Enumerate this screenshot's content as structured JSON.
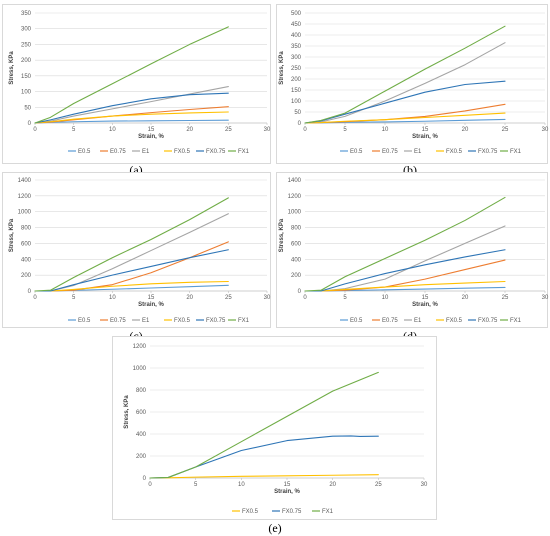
{
  "colors": {
    "E0.5": "#5b9bd5",
    "E0.75": "#ed7d31",
    "E1": "#a5a5a5",
    "FX0.5": "#ffc000",
    "FX0.75": "#2e75b6",
    "FX1": "#70ad47",
    "grid": "#d9d9d9",
    "axis": "#bfbfbf"
  },
  "chart_data": [
    {
      "type": "line",
      "caption": "(a)",
      "xlabel": "Strain, %",
      "ylabel": "Stress, KPa",
      "xlim": [
        0,
        30
      ],
      "ylim": [
        0,
        350
      ],
      "xticks": [
        0,
        5,
        10,
        15,
        20,
        25,
        30
      ],
      "yticks": [
        0,
        50,
        100,
        150,
        200,
        250,
        300,
        350
      ],
      "grid": "horizontal",
      "legend": "bottom",
      "series": [
        {
          "name": "E0.5",
          "x": [
            0,
            2,
            5,
            10,
            15,
            20,
            25
          ],
          "y": [
            0,
            2,
            4,
            6,
            7,
            8,
            9
          ]
        },
        {
          "name": "E0.75",
          "x": [
            0,
            2,
            5,
            10,
            15,
            20,
            25
          ],
          "y": [
            0,
            3,
            10,
            22,
            33,
            43,
            52
          ]
        },
        {
          "name": "E1",
          "x": [
            0,
            2,
            5,
            10,
            15,
            20,
            25
          ],
          "y": [
            0,
            6,
            22,
            45,
            68,
            92,
            116
          ]
        },
        {
          "name": "FX0.5",
          "x": [
            0,
            2,
            5,
            10,
            15,
            20,
            25
          ],
          "y": [
            0,
            4,
            12,
            22,
            28,
            32,
            35
          ]
        },
        {
          "name": "FX0.75",
          "x": [
            0,
            2,
            5,
            10,
            15,
            20,
            25
          ],
          "y": [
            0,
            10,
            28,
            55,
            77,
            90,
            95
          ]
        },
        {
          "name": "FX1",
          "x": [
            0,
            2,
            5,
            10,
            15,
            20,
            25
          ],
          "y": [
            0,
            18,
            62,
            125,
            188,
            250,
            306
          ]
        }
      ]
    },
    {
      "type": "line",
      "caption": "(b)",
      "xlabel": "Strain, %",
      "ylabel": "Stress, KPa",
      "xlim": [
        0,
        30
      ],
      "ylim": [
        0,
        500
      ],
      "xticks": [
        0,
        5,
        10,
        15,
        20,
        25,
        30
      ],
      "yticks": [
        0,
        50,
        100,
        150,
        200,
        250,
        300,
        350,
        400,
        450,
        500
      ],
      "grid": "horizontal",
      "legend": "bottom",
      "series": [
        {
          "name": "E0.5",
          "x": [
            0,
            2,
            5,
            10,
            15,
            20,
            25
          ],
          "y": [
            0,
            1,
            3,
            5,
            8,
            12,
            16
          ]
        },
        {
          "name": "E0.75",
          "x": [
            0,
            2,
            5,
            10,
            15,
            20,
            25
          ],
          "y": [
            0,
            2,
            6,
            15,
            30,
            55,
            85
          ]
        },
        {
          "name": "E1",
          "x": [
            0,
            2,
            5,
            10,
            15,
            20,
            25
          ],
          "y": [
            0,
            5,
            30,
            100,
            180,
            265,
            365
          ]
        },
        {
          "name": "FX0.5",
          "x": [
            0,
            2,
            5,
            10,
            15,
            20,
            25
          ],
          "y": [
            0,
            2,
            8,
            15,
            25,
            35,
            45
          ]
        },
        {
          "name": "FX0.75",
          "x": [
            0,
            2,
            5,
            10,
            15,
            20,
            25
          ],
          "y": [
            0,
            10,
            40,
            90,
            140,
            175,
            190
          ]
        },
        {
          "name": "FX1",
          "x": [
            0,
            2,
            5,
            10,
            15,
            20,
            25
          ],
          "y": [
            0,
            12,
            45,
            145,
            245,
            340,
            440
          ]
        }
      ]
    },
    {
      "type": "line",
      "caption": "(c)",
      "xlabel": "Strain, %",
      "ylabel": "Stress, KPa",
      "xlim": [
        0,
        30
      ],
      "ylim": [
        0,
        1400
      ],
      "xticks": [
        0,
        5,
        10,
        15,
        20,
        25,
        30
      ],
      "yticks": [
        0,
        200,
        400,
        600,
        800,
        1000,
        1200,
        1400
      ],
      "grid": "horizontal",
      "legend": "bottom",
      "series": [
        {
          "name": "E0.5",
          "x": [
            0,
            2,
            5,
            10,
            15,
            20,
            25
          ],
          "y": [
            0,
            0,
            8,
            22,
            38,
            55,
            72
          ]
        },
        {
          "name": "E0.75",
          "x": [
            0,
            2,
            5,
            10,
            15,
            20,
            25
          ],
          "y": [
            0,
            0,
            10,
            80,
            230,
            420,
            620
          ]
        },
        {
          "name": "E1",
          "x": [
            0,
            2,
            5,
            10,
            15,
            20,
            25
          ],
          "y": [
            0,
            0,
            70,
            280,
            510,
            740,
            975
          ]
        },
        {
          "name": "FX0.5",
          "x": [
            0,
            2,
            5,
            10,
            15,
            20,
            25
          ],
          "y": [
            0,
            0,
            20,
            60,
            90,
            110,
            120
          ]
        },
        {
          "name": "FX0.75",
          "x": [
            0,
            2,
            5,
            10,
            15,
            20,
            25
          ],
          "y": [
            0,
            0,
            80,
            200,
            310,
            420,
            520
          ]
        },
        {
          "name": "FX1",
          "x": [
            0,
            2,
            5,
            10,
            15,
            20,
            25
          ],
          "y": [
            0,
            10,
            170,
            420,
            650,
            900,
            1175
          ]
        }
      ]
    },
    {
      "type": "line",
      "caption": "(d)",
      "xlabel": "Strain, %",
      "ylabel": "Stress, KPa",
      "xlim": [
        0,
        30
      ],
      "ylim": [
        0,
        1400
      ],
      "xticks": [
        0,
        5,
        10,
        15,
        20,
        25,
        30
      ],
      "yticks": [
        0,
        200,
        400,
        600,
        800,
        1000,
        1200,
        1400
      ],
      "grid": "horizontal",
      "legend": "bottom",
      "series": [
        {
          "name": "E0.5",
          "x": [
            0,
            2,
            5,
            10,
            15,
            20,
            25
          ],
          "y": [
            0,
            0,
            5,
            15,
            25,
            35,
            45
          ]
        },
        {
          "name": "E0.75",
          "x": [
            0,
            2,
            5,
            10,
            15,
            20,
            25
          ],
          "y": [
            0,
            0,
            10,
            50,
            150,
            270,
            390
          ]
        },
        {
          "name": "E1",
          "x": [
            0,
            2,
            5,
            10,
            15,
            20,
            25
          ],
          "y": [
            0,
            0,
            30,
            150,
            380,
            600,
            820
          ]
        },
        {
          "name": "FX0.5",
          "x": [
            0,
            2,
            5,
            10,
            15,
            20,
            25
          ],
          "y": [
            0,
            0,
            20,
            50,
            80,
            100,
            120
          ]
        },
        {
          "name": "FX0.75",
          "x": [
            0,
            2,
            5,
            10,
            15,
            20,
            25
          ],
          "y": [
            0,
            0,
            90,
            220,
            330,
            430,
            520
          ]
        },
        {
          "name": "FX1",
          "x": [
            0,
            2,
            5,
            10,
            15,
            20,
            25
          ],
          "y": [
            0,
            10,
            180,
            410,
            640,
            890,
            1180
          ]
        }
      ]
    },
    {
      "type": "line",
      "caption": "(e)",
      "xlabel": "Strain, %",
      "ylabel": "Stress, KPa",
      "xlim": [
        0,
        30
      ],
      "ylim": [
        0,
        1200
      ],
      "xticks": [
        0,
        5,
        10,
        15,
        20,
        25,
        30
      ],
      "yticks": [
        0,
        200,
        400,
        600,
        800,
        1000,
        1200
      ],
      "grid": "horizontal",
      "legend": "bottom",
      "series": [
        {
          "name": "FX0.5",
          "x": [
            0,
            2,
            5,
            10,
            15,
            20,
            25
          ],
          "y": [
            0,
            2,
            8,
            15,
            20,
            25,
            30
          ]
        },
        {
          "name": "FX0.75",
          "x": [
            0,
            2,
            5,
            10,
            15,
            20,
            22,
            23,
            25
          ],
          "y": [
            0,
            5,
            100,
            250,
            340,
            380,
            382,
            378,
            380
          ]
        },
        {
          "name": "FX1",
          "x": [
            0,
            2,
            5,
            10,
            15,
            20,
            25
          ],
          "y": [
            0,
            5,
            100,
            330,
            560,
            790,
            960
          ]
        }
      ]
    }
  ]
}
